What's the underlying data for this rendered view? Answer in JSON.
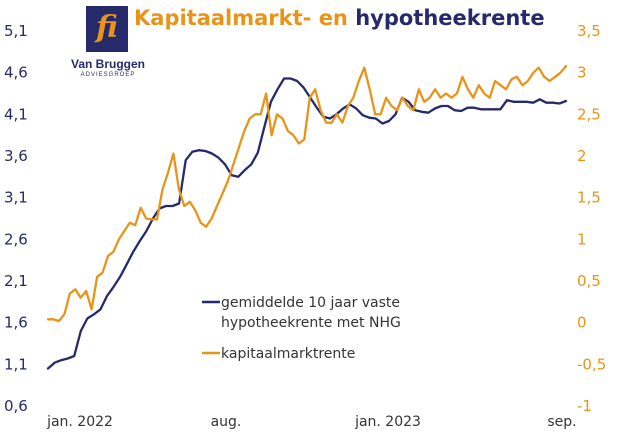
{
  "title": {
    "part1": "Kapitaalmarkt- en",
    "part2": "hypotheekrente"
  },
  "logo": {
    "mark": "fi",
    "name": "Van Bruggen",
    "sub": "ADVIESGROEP"
  },
  "colors": {
    "navy": "#262A6B",
    "orange": "#E8941A"
  },
  "chart_data": {
    "type": "line",
    "x_labels": [
      "jan. 2022",
      "aug.",
      "jan. 2023",
      "sep."
    ],
    "y_left": {
      "ylim": [
        0.6,
        5.1
      ],
      "ticks": [
        "0,6",
        "1,1",
        "1,6",
        "2,1",
        "2,6",
        "3,1",
        "3,6",
        "4,1",
        "4,6",
        "5,1"
      ]
    },
    "y_right": {
      "ylim": [
        -1,
        3.5
      ],
      "ticks": [
        "-1",
        "-0,5",
        "0",
        "0,5",
        "1",
        "1,5",
        "2",
        "2,5",
        "3",
        "3,5"
      ]
    },
    "series": [
      {
        "name": "gemiddelde 10 jaar vaste hypotheekrente met NHG",
        "axis": "left",
        "color": "#262A6B",
        "values": [
          1.05,
          1.12,
          1.15,
          1.17,
          1.2,
          1.5,
          1.65,
          1.7,
          1.76,
          1.92,
          2.03,
          2.15,
          2.3,
          2.45,
          2.58,
          2.7,
          2.85,
          2.97,
          3.0,
          3.0,
          3.03,
          3.55,
          3.65,
          3.67,
          3.66,
          3.63,
          3.58,
          3.5,
          3.37,
          3.35,
          3.43,
          3.5,
          3.64,
          3.95,
          4.25,
          4.4,
          4.53,
          4.53,
          4.5,
          4.42,
          4.3,
          4.18,
          4.07,
          4.05,
          4.1,
          4.17,
          4.22,
          4.17,
          4.09,
          4.06,
          4.05,
          3.99,
          4.02,
          4.1,
          4.3,
          4.25,
          4.15,
          4.13,
          4.12,
          4.17,
          4.2,
          4.2,
          4.15,
          4.14,
          4.18,
          4.18,
          4.16,
          4.16,
          4.16,
          4.16,
          4.27,
          4.25,
          4.25,
          4.25,
          4.24,
          4.28,
          4.24,
          4.24,
          4.23,
          4.26
        ]
      },
      {
        "name": "kapitaalmarktrente",
        "axis": "right",
        "color": "#E8941A",
        "values": [
          0.04,
          0.04,
          0.02,
          0.1,
          0.35,
          0.4,
          0.3,
          0.38,
          0.16,
          0.55,
          0.6,
          0.8,
          0.85,
          1.0,
          1.1,
          1.2,
          1.17,
          1.38,
          1.25,
          1.24,
          1.24,
          1.6,
          1.8,
          2.03,
          1.6,
          1.4,
          1.45,
          1.35,
          1.2,
          1.15,
          1.25,
          1.4,
          1.55,
          1.7,
          1.9,
          2.1,
          2.3,
          2.45,
          2.5,
          2.5,
          2.75,
          2.25,
          2.5,
          2.45,
          2.3,
          2.25,
          2.15,
          2.2,
          2.7,
          2.8,
          2.55,
          2.4,
          2.4,
          2.5,
          2.4,
          2.6,
          2.7,
          2.9,
          3.06,
          2.8,
          2.5,
          2.5,
          2.7,
          2.6,
          2.55,
          2.7,
          2.6,
          2.55,
          2.8,
          2.65,
          2.7,
          2.8,
          2.7,
          2.75,
          2.7,
          2.75,
          2.95,
          2.8,
          2.7,
          2.85,
          2.75,
          2.7,
          2.9,
          2.85,
          2.8,
          2.92,
          2.95,
          2.85,
          2.9,
          3.0,
          3.06,
          2.95,
          2.9,
          2.95,
          3.0,
          3.08
        ]
      }
    ]
  }
}
